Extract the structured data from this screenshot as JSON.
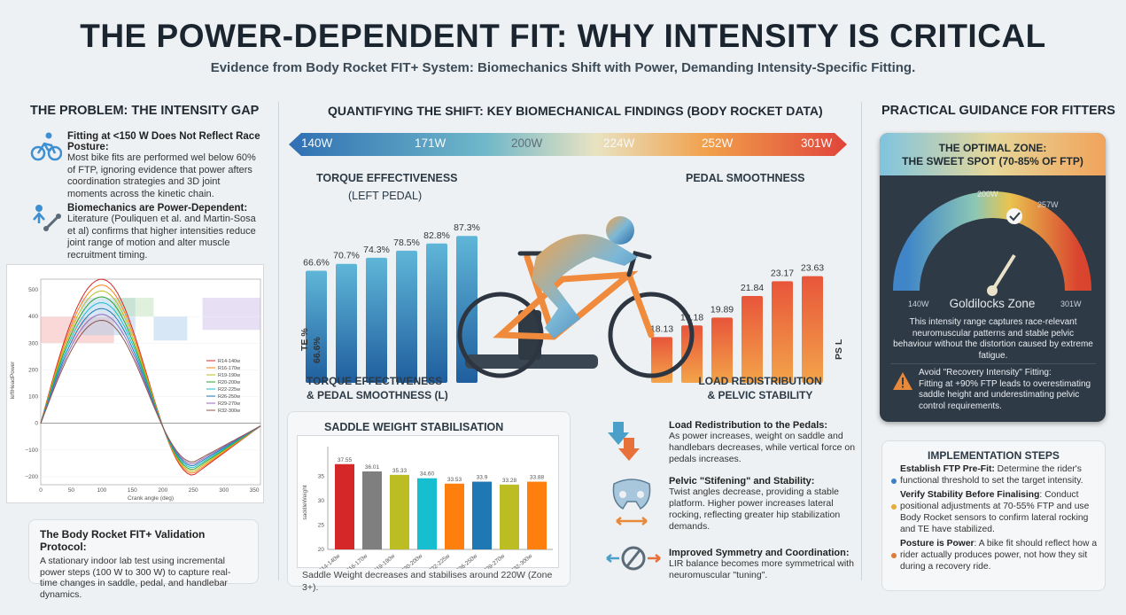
{
  "header": {
    "title": "THE POWER-DEPENDENT FIT: WHY INTENSITY IS CRITICAL",
    "subtitle": "Evidence from Body Rocket FIT+ System: Biomechanics Shift with Power, Demanding Intensity-Specific Fitting."
  },
  "left": {
    "section_title": "THE PROBLEM: THE INTENSITY GAP",
    "item1": {
      "head": "Fitting at <150 W Does Not Reflect Race Posture:",
      "text": "Most bike fits are performed wel below 60% of FTP, ignoring evidence that power afters coordination strategies and 3D joint moments across the kinetic chain."
    },
    "item2": {
      "head": "Biomechanics are Power-Dependent:",
      "text": "Literature (Pouliquen et al. and Martin-Sosa et al) confirms that higher intensities reduce joint range of motion and alter muscle recruitment timing."
    },
    "protocol": {
      "head": "The Body Rocket FIT+ Validation Protocol:",
      "text": "A stationary indoor lab test using incremental power steps (100 W to 300 W) to capture real-time changes in saddle, pedal, and handlebar dynamics."
    }
  },
  "moment_chart": {
    "xlabel": "Crank angle (deg)",
    "ylabel": "leftHeadPower",
    "x_ticks": [
      "0",
      "50",
      "100",
      "150",
      "200",
      "250",
      "300",
      "350"
    ],
    "y_ticks": [
      "500",
      "400",
      "300",
      "200",
      "100",
      "0",
      "−100",
      "−200"
    ],
    "legend": [
      "R14-140w",
      "R16-170w",
      "R19-190w",
      "R20-200w",
      "R22-225w",
      "R26-250w",
      "R29-270w",
      "R32-300w"
    ],
    "colors": [
      "#d62728",
      "#ff7f0e",
      "#bcbd22",
      "#2ca02c",
      "#17becf",
      "#1f77b4",
      "#9467bd",
      "#8c564b"
    ]
  },
  "center": {
    "section_title": "QUANTIFYING THE SHIFT: KEY BIOMECHANICAL FINDINGS (BODY ROCKET DATA)",
    "power_scale": [
      "140W",
      "171W",
      "200W",
      "224W",
      "252W",
      "301W"
    ],
    "torque_title": "TORQUE EFFECTIVENESS",
    "torque_subtitle": "(LEFT PEDAL)",
    "smooth_title": "PEDAL SMOOTHNESS",
    "te_axis": "TE %",
    "te_first": "66.6%",
    "ps_axis": "PS L",
    "bottom_left_1": "TORQUE EFFECTIVENESS",
    "bottom_left_2": "& PEDAL SMOOTHNESS (L)",
    "bottom_right_1": "LOAD REDISTRIBUTION",
    "bottom_right_2": "& PELVIC STABILITY",
    "saddle_title": "SADDLE WEIGHT STABILISATION",
    "saddle_caption": "Saddle Weight decreases and stabilises around 220W (Zone 3+).",
    "findings": [
      {
        "head": "Load Redistribution to the Pedals:",
        "text": "As power increases, weight on saddle and handlebars decreases, while vertical force on pedals increases."
      },
      {
        "head": "Pelvic \"Stifening\" and Stability:",
        "text": "Twist angles decrease, providing a stable platform. Higher power increases lateral rocking, reflecting greater hip stabilization demands."
      },
      {
        "head": "Improved Symmetry and Coordination:",
        "text": "LIR balance becomes more symmetrical with neuromuscular \"tuning\"."
      }
    ]
  },
  "chart_data": [
    {
      "type": "bar",
      "title": "TORQUE EFFECTIVENESS (LEFT PEDAL)",
      "categories": [
        "140W",
        "171W",
        "200W",
        "224W",
        "252W",
        "301W"
      ],
      "values": [
        66.6,
        70.7,
        74.3,
        78.5,
        82.8,
        87.3
      ],
      "labels": [
        "66.6%",
        "70.7%",
        "74.3%",
        "78.5%",
        "82.8%",
        "87.3%"
      ],
      "ylabel": "TE %",
      "ylim": [
        0,
        95
      ]
    },
    {
      "type": "bar",
      "title": "PEDAL SMOOTHNESS",
      "categories": [
        "140W",
        "171W",
        "200W",
        "224W",
        "252W",
        "301W"
      ],
      "values": [
        18.13,
        19.18,
        19.89,
        21.84,
        23.17,
        23.63
      ],
      "labels": [
        "18.13",
        "19.18",
        "19.89",
        "21.84",
        "23.17",
        "23.63"
      ],
      "ylabel": "PS L",
      "ylim": [
        0,
        26
      ]
    },
    {
      "type": "bar",
      "title": "SADDLE WEIGHT STABILISATION",
      "categories": [
        "R14-140w",
        "R16-170w",
        "R19-190w",
        "R20-200w",
        "R22-225w",
        "R26-250w",
        "R29-270w",
        "R32-300w"
      ],
      "values": [
        37.5,
        36.0,
        35.3,
        34.6,
        33.5,
        33.9,
        33.3,
        33.9
      ],
      "labels": [
        "37.55",
        "36.01",
        "35.33",
        "34.60",
        "33.53",
        "33.9",
        "33.28",
        "33.88"
      ],
      "ylabel": "saddleWeight",
      "y_ticks": [
        "35",
        "30",
        "25",
        "20"
      ],
      "ylim": [
        20,
        40
      ],
      "colors": [
        "#d62728",
        "#7f7f7f",
        "#bcbd22",
        "#17becf",
        "#ff7f0e",
        "#1f77b4",
        "#bcbd22",
        "#ff7f0e"
      ]
    }
  ],
  "right": {
    "section_title": "PRACTICAL GUIDANCE FOR FITTERS",
    "zone_title_1": "THE OPTIMAL ZONE:",
    "zone_title_2": "THE SWEET SPOT (70-85% OF FTP)",
    "gauge_labels": {
      "left": "140W",
      "top": "200W",
      "upper_right": "257W",
      "right": "301W"
    },
    "gauge_caption": "Goldilocks Zone",
    "zone_text": "This intensity range captures race-relevant neuromuscular patterns and stable pelvic behaviour without the distortion caused by extreme fatigue.",
    "warning_head": "Avoid \"Recovery Intensity\" Fitting:",
    "warning_text": "Fitting at +90% FTP leads to overestimating saddle height and underestimating pelvic control requirements.",
    "steps_title": "IMPLEMENTATION STEPS",
    "steps": [
      {
        "head": "Establish FTP Pre-Fit:",
        "text": " Determine the rider's functional threshold to set the target intensity.",
        "color": "#3b82c4"
      },
      {
        "head": "Verify Stability Before Finalising",
        "text": ": Conduct positional adjustments at 70-55% FTP and use Body Rocket sensors to confirm lateral rocking and TE have stabilized.",
        "color": "#e8a93b"
      },
      {
        "head": "Posture is Power",
        "text": ": A bike fit should reflect how a rider actually produces power, not how they sit during a recovery ride.",
        "color": "#e07a3a"
      }
    ]
  }
}
